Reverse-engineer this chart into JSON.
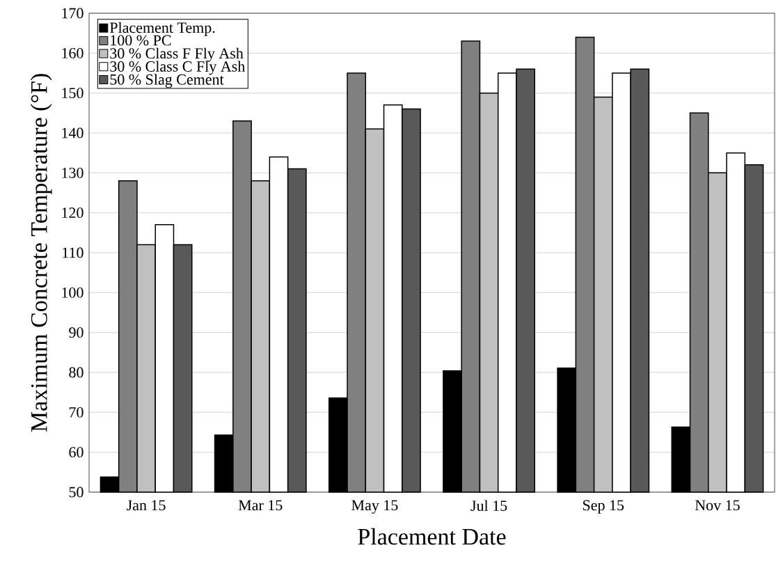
{
  "chart_data": {
    "type": "bar",
    "xlabel": "Placement Date",
    "ylabel": "Maximum Concrete Temperature (°F)",
    "categories": [
      "Jan 15",
      "Mar 15",
      "May 15",
      "Jul 15",
      "Sep 15",
      "Nov 15"
    ],
    "series": [
      {
        "name": "Placement Temp.",
        "color": "#000000",
        "values": [
          53.8,
          64.3,
          73.6,
          80.4,
          81.1,
          66.3
        ]
      },
      {
        "name": "100 % PC",
        "color": "#808080",
        "values": [
          128,
          143,
          155,
          163,
          164,
          145
        ]
      },
      {
        "name": "30 % Class F Fly Ash",
        "color": "#c0c0c0",
        "values": [
          112,
          128,
          141,
          150,
          149,
          130
        ]
      },
      {
        "name": "30 % Class C Fly Ash",
        "color": "#ffffff",
        "values": [
          117,
          134,
          147,
          155,
          155,
          135
        ]
      },
      {
        "name": "50 % Slag Cement",
        "color": "#595959",
        "values": [
          112,
          131,
          146,
          156,
          156,
          132
        ]
      }
    ],
    "ylim": [
      50,
      170
    ],
    "yticks": [
      50,
      60,
      70,
      80,
      90,
      100,
      110,
      120,
      130,
      140,
      150,
      160,
      170
    ],
    "grid": "y",
    "legend": "top left"
  }
}
